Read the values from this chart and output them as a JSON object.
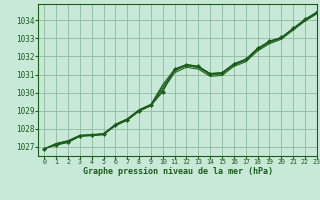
{
  "background_color": "#c8e8d8",
  "grid_color": "#98c0a8",
  "line_color": "#1a5e1a",
  "marker_color": "#1a5e1a",
  "xlabel": "Graphe pression niveau de la mer (hPa)",
  "xlim": [
    -0.5,
    23
  ],
  "ylim": [
    1026.5,
    1034.9
  ],
  "yticks": [
    1027,
    1028,
    1029,
    1030,
    1031,
    1032,
    1033,
    1034
  ],
  "xticks": [
    0,
    1,
    2,
    3,
    4,
    5,
    6,
    7,
    8,
    9,
    10,
    11,
    12,
    13,
    14,
    15,
    16,
    17,
    18,
    19,
    20,
    21,
    22,
    23
  ],
  "series": [
    [
      1026.9,
      1027.1,
      1027.25,
      1027.6,
      1027.65,
      1027.7,
      1028.2,
      1028.5,
      1029.0,
      1029.3,
      1030.05,
      1031.3,
      1031.55,
      1031.45,
      1031.05,
      1031.1,
      1031.6,
      1031.85,
      1032.45,
      1032.85,
      1033.05,
      1033.55,
      1034.05,
      1034.45
    ],
    [
      1026.9,
      1027.12,
      1027.27,
      1027.58,
      1027.62,
      1027.67,
      1028.17,
      1028.47,
      1028.97,
      1029.27,
      1030.15,
      1031.1,
      1031.4,
      1031.3,
      1030.9,
      1030.95,
      1031.45,
      1031.7,
      1032.3,
      1032.7,
      1032.95,
      1033.45,
      1033.95,
      1034.35
    ],
    [
      1026.9,
      1027.15,
      1027.3,
      1027.62,
      1027.65,
      1027.7,
      1028.22,
      1028.52,
      1029.02,
      1029.32,
      1030.25,
      1031.2,
      1031.48,
      1031.38,
      1030.98,
      1031.03,
      1031.52,
      1031.77,
      1032.37,
      1032.77,
      1033.0,
      1033.5,
      1034.0,
      1034.4
    ],
    [
      1026.9,
      1027.17,
      1027.33,
      1027.63,
      1027.67,
      1027.72,
      1028.24,
      1028.54,
      1029.04,
      1029.34,
      1030.35,
      1031.25,
      1031.52,
      1031.42,
      1031.02,
      1031.07,
      1031.55,
      1031.8,
      1032.4,
      1032.8,
      1033.02,
      1033.52,
      1034.02,
      1034.42
    ],
    [
      1026.9,
      1027.2,
      1027.35,
      1027.65,
      1027.69,
      1027.74,
      1028.26,
      1028.56,
      1029.06,
      1029.36,
      1030.45,
      1031.3,
      1031.56,
      1031.46,
      1031.06,
      1031.11,
      1031.58,
      1031.83,
      1032.43,
      1032.83,
      1033.05,
      1033.55,
      1034.05,
      1034.45
    ]
  ],
  "ytick_fontsize": 5.5,
  "xtick_fontsize": 4.8,
  "xlabel_fontsize": 6.0
}
